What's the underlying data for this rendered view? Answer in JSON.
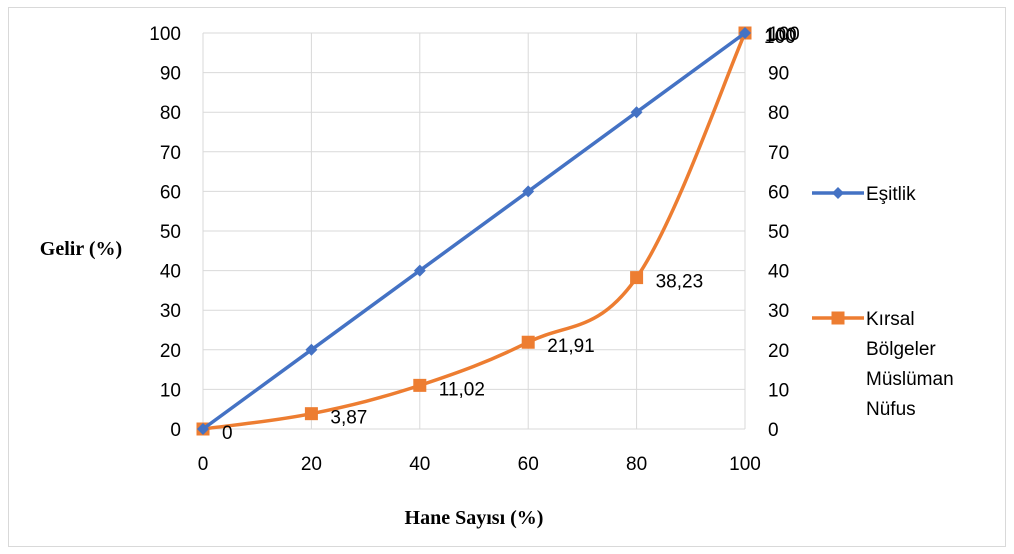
{
  "chart_data": {
    "type": "line",
    "xlabel": "Hane Sayısı (%)",
    "ylabel": "Gelir (%)",
    "xlim": [
      0,
      100
    ],
    "ylim": [
      0,
      100
    ],
    "x_ticks": [
      0,
      20,
      40,
      60,
      80,
      100
    ],
    "y_ticks": [
      0,
      10,
      20,
      30,
      40,
      50,
      60,
      70,
      80,
      90,
      100
    ],
    "secondary_y_axis": true,
    "grid": "vertical-and-horizontal",
    "legend_position": "right",
    "x": [
      0,
      20,
      40,
      60,
      80,
      100
    ],
    "series": [
      {
        "name": "Eşitlik",
        "values": [
          0,
          20,
          40,
          60,
          80,
          100
        ],
        "color": "#4472C4",
        "marker": "diamond",
        "smooth": false
      },
      {
        "name": "Kırsal Bölgeler Müslüman Nüfus",
        "name_lines": [
          "Kırsal",
          "Bölgeler",
          "Müslüman",
          "Nüfus"
        ],
        "values": [
          0,
          3.87,
          11.02,
          21.91,
          38.23,
          100
        ],
        "data_labels": [
          "0",
          "3,87",
          "11,02",
          "21,91",
          "38,23",
          "100"
        ],
        "color": "#ED7D31",
        "marker": "square",
        "smooth": true
      }
    ],
    "extra_label": "100"
  }
}
